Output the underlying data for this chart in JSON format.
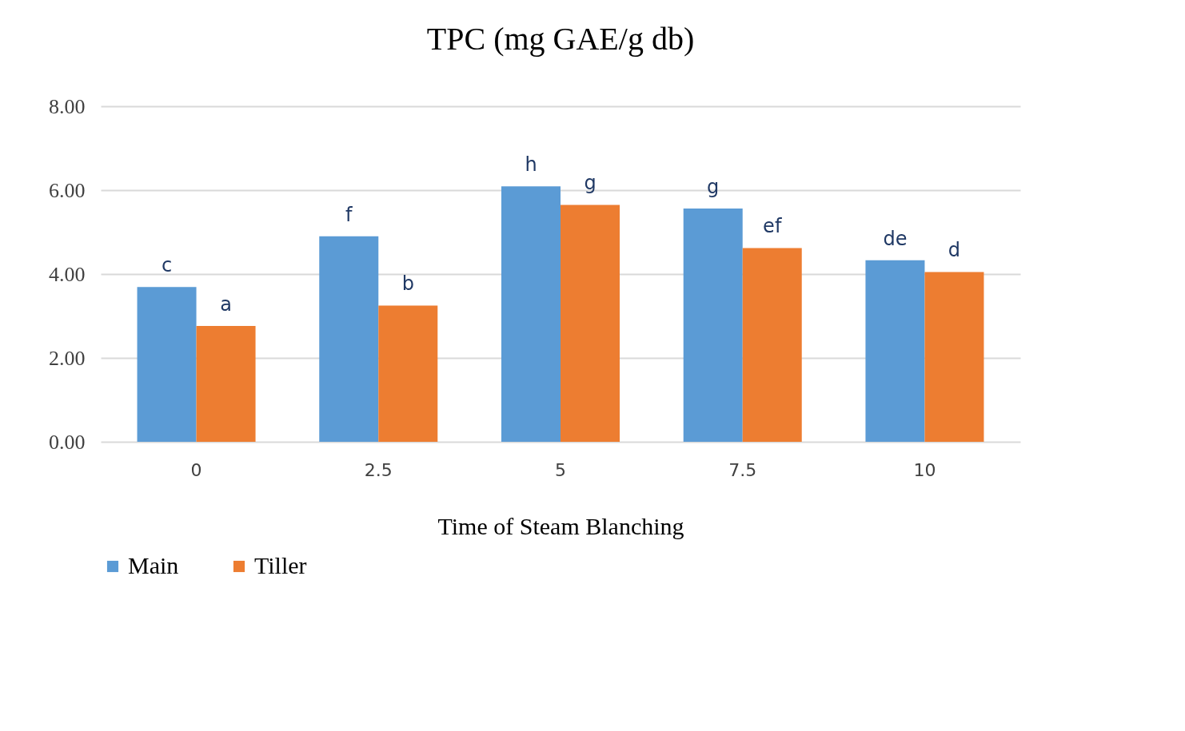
{
  "chart_data": {
    "type": "bar",
    "title": "TPC (mg GAE/g db)",
    "xlabel": "Time of Steam Blanching",
    "categories": [
      "0",
      "2.5",
      "5",
      "7.5",
      "10"
    ],
    "series": [
      {
        "name": "Main",
        "color": "#5b9bd5",
        "values": [
          3.69,
          4.9,
          6.09,
          5.56,
          4.33
        ],
        "value_labels": [
          "c",
          "f",
          "h",
          "g",
          "de"
        ]
      },
      {
        "name": "Tiller",
        "color": "#ed7d31",
        "values": [
          2.76,
          3.25,
          5.65,
          4.62,
          4.05
        ],
        "value_labels": [
          "a",
          "b",
          "g",
          "ef",
          "d"
        ]
      }
    ],
    "ylim": [
      0,
      8
    ],
    "yticks": [
      {
        "value": 0,
        "label": "0.00"
      },
      {
        "value": 2,
        "label": "2.00"
      },
      {
        "value": 4,
        "label": "4.00"
      },
      {
        "value": 6,
        "label": "6.00"
      },
      {
        "value": 8,
        "label": "8.00"
      }
    ],
    "grid": "y",
    "legend": "bottom"
  }
}
